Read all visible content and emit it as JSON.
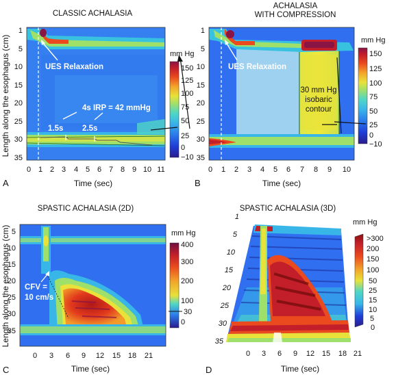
{
  "colors": {
    "colorscale": [
      "#2a1c8c",
      "#1f3fd8",
      "#2b7bea",
      "#39b6e8",
      "#4fd6c6",
      "#9fe06a",
      "#e8e23a",
      "#f2a42a",
      "#ea4a1e",
      "#c31f2a",
      "#8a1444"
    ]
  },
  "y_axis_label": "Length along the esophagus (cm)",
  "chart_data": [
    {
      "type": "heatmap",
      "panel_letter": "A",
      "title": "CLASSIC ACHALASIA",
      "xlabel": "Time (sec)",
      "ylabel": "Length along the esophagus (cm)",
      "x_ticks": [
        "0",
        "1",
        "2",
        "3",
        "4",
        "5",
        "6",
        "7",
        "8",
        "9",
        "10",
        "11"
      ],
      "y_ticks": [
        "1",
        "5",
        "10",
        "15",
        "20",
        "25",
        "30",
        "35"
      ],
      "xlim": [
        0,
        11.8
      ],
      "ylim": [
        0,
        36
      ],
      "colorbar_title": "mm Hg",
      "colorbar_ticks": [
        "150",
        "125",
        "100",
        "75",
        "50",
        "25",
        "0",
        "−10"
      ],
      "annotations": {
        "ues": "UES Relaxation",
        "irp": "4s IRP = 42 mmHg",
        "seg1": "1.5s",
        "seg2": "2.5s"
      }
    },
    {
      "type": "heatmap",
      "panel_letter": "B",
      "title_line1": "ACHALASIA",
      "title_line2": "WITH COMPRESSION",
      "xlabel": "Time (sec)",
      "x_ticks": [
        "0",
        "1",
        "2",
        "3",
        "4",
        "5",
        "6",
        "7",
        "8",
        "9",
        "10"
      ],
      "y_ticks": [
        "1",
        "5",
        "10",
        "15",
        "20",
        "25",
        "30",
        "35"
      ],
      "xlim": [
        0,
        10.8
      ],
      "ylim": [
        0,
        36
      ],
      "colorbar_title": "mm Hg",
      "colorbar_ticks": [
        "150",
        "125",
        "100",
        "75",
        "50",
        "25",
        "0",
        "−10"
      ],
      "annotations": {
        "ues": "UES Relaxation",
        "iso1": "30 mm Hg",
        "iso2": "isobaric",
        "iso3": "contour"
      }
    },
    {
      "type": "heatmap",
      "panel_letter": "C",
      "title": "SPASTIC ACHALASIA (2D)",
      "xlabel": "Time (sec)",
      "ylabel": "Length along the esophagus (cm)",
      "x_ticks": [
        "0",
        "3",
        "6",
        "9",
        "12",
        "15",
        "18",
        "21"
      ],
      "y_ticks": [
        "5",
        "10",
        "15",
        "20",
        "25",
        "30",
        "35"
      ],
      "xlim": [
        -2.5,
        24
      ],
      "ylim": [
        0,
        38
      ],
      "colorbar_title": "mm Hg",
      "colorbar_ticks": [
        "400",
        "300",
        "200",
        "100",
        "30",
        "0"
      ],
      "annotations": {
        "cfv1": "CFV =",
        "cfv2": "10 cm/s"
      }
    },
    {
      "type": "heatmap",
      "panel_letter": "D",
      "title": "SPASTIC ACHALASIA (3D)",
      "xlabel": "Time (sec)",
      "x_ticks": [
        "0",
        "3",
        "6",
        "9",
        "12",
        "15",
        "18",
        "21"
      ],
      "y_ticks": [
        "1",
        "5",
        "10",
        "15",
        "20",
        "25",
        "30",
        "35"
      ],
      "colorbar_title": "mm Hg",
      "colorbar_ticks": [
        ">300",
        "200",
        "150",
        "100",
        "50",
        "25",
        "15",
        "10",
        "5",
        "0"
      ]
    }
  ]
}
